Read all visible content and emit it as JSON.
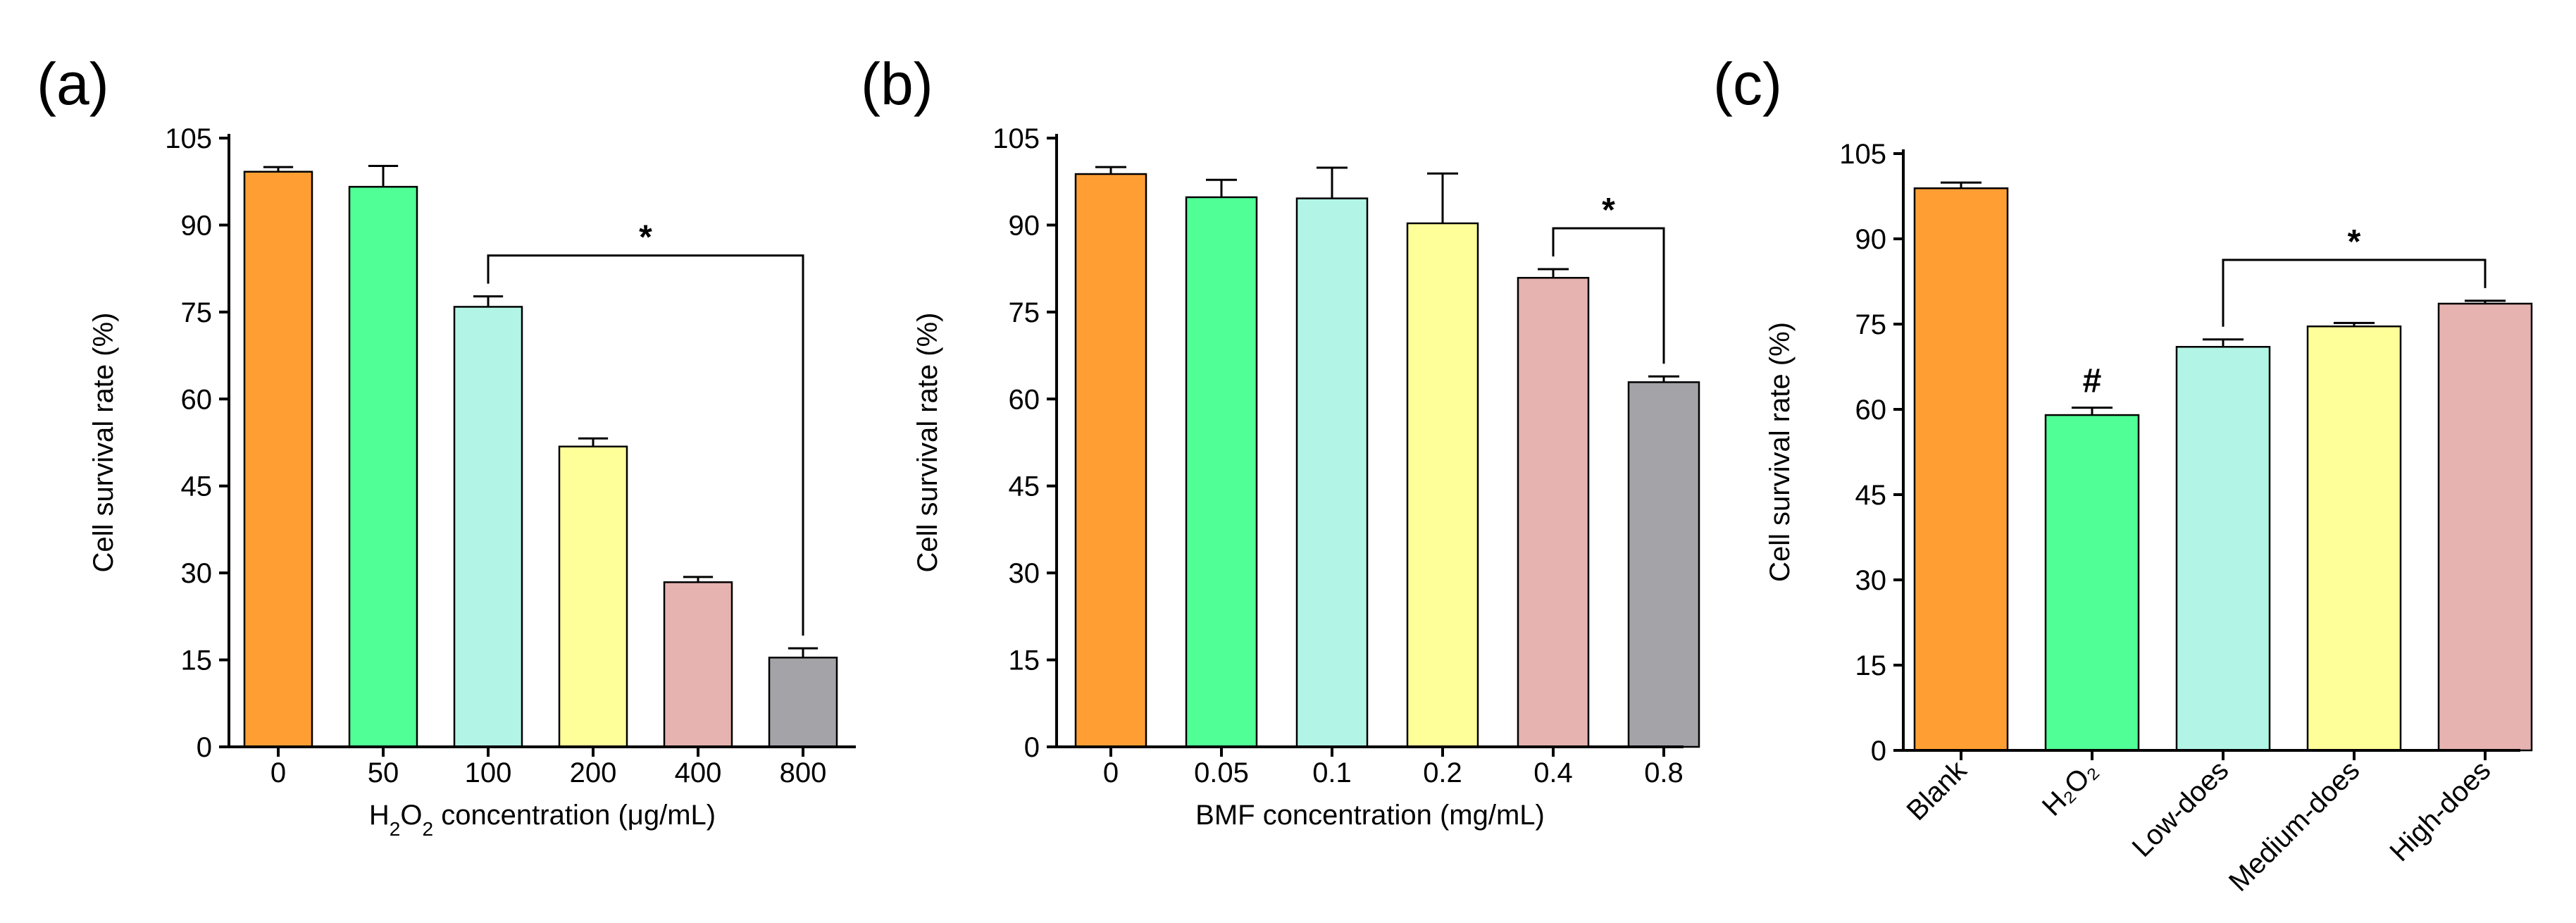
{
  "colors": [
    "#FF9F33",
    "#50FF96",
    "#B2F5E6",
    "#FFFF9A",
    "#E6B3B0",
    "#A3A3A8"
  ],
  "chart_data": [
    {
      "type": "bar",
      "panel": "(a)",
      "title": "",
      "ylabel": "Cell survival rate (%)",
      "xlabel_parts": [
        {
          "t": "H",
          "sub": false
        },
        {
          "t": "2",
          "sub": true
        },
        {
          "t": "O",
          "sub": false
        },
        {
          "t": "2",
          "sub": true
        },
        {
          "t": " concentration (μg/mL)",
          "sub": false
        }
      ],
      "ylim": [
        0,
        105
      ],
      "yticks": [
        "0",
        "15",
        "30",
        "45",
        "60",
        "75",
        "90",
        "105"
      ],
      "categories": [
        "0",
        "50",
        "100",
        "200",
        "400",
        "800"
      ],
      "values": [
        99.2,
        96.6,
        75.9,
        51.8,
        28.4,
        15.4
      ],
      "errors": [
        0.8,
        3.6,
        1.8,
        1.4,
        0.9,
        1.6
      ],
      "significance": [
        {
          "from": 2,
          "to": 5,
          "label": "*"
        }
      ]
    },
    {
      "type": "bar",
      "panel": "(b)",
      "title": "",
      "ylabel": "Cell survival rate (%)",
      "xlabel_parts": [
        {
          "t": "BMF concentration (mg/mL)",
          "sub": false
        }
      ],
      "ylim": [
        0,
        105
      ],
      "yticks": [
        "0",
        "15",
        "30",
        "45",
        "60",
        "75",
        "90",
        "105"
      ],
      "categories": [
        "0",
        "0.05",
        "0.1",
        "0.2",
        "0.4",
        "0.8"
      ],
      "values": [
        98.8,
        94.8,
        94.6,
        90.3,
        80.9,
        62.9
      ],
      "errors": [
        1.2,
        3.0,
        5.3,
        8.6,
        1.5,
        1.0
      ],
      "significance": [
        {
          "from": 4,
          "to": 5,
          "label": "*"
        }
      ]
    },
    {
      "type": "bar",
      "panel": "(c)",
      "title": "",
      "ylabel": "Cell survival rate (%)",
      "xlabel_parts": [],
      "ylim": [
        0,
        105
      ],
      "yticks": [
        "0",
        "15",
        "30",
        "45",
        "60",
        "75",
        "90",
        "105"
      ],
      "categories": [
        "Blank",
        "H₂O₂",
        "Low-does",
        "Medium-does",
        "High-does"
      ],
      "values": [
        98.9,
        59.0,
        71.0,
        74.6,
        78.6
      ],
      "errors": [
        1.0,
        1.3,
        1.3,
        0.6,
        0.5
      ],
      "significance": [
        {
          "from": 2,
          "to": 4,
          "label": "*"
        }
      ],
      "annotations": [
        {
          "bar": 1,
          "label": "#"
        }
      ]
    }
  ]
}
